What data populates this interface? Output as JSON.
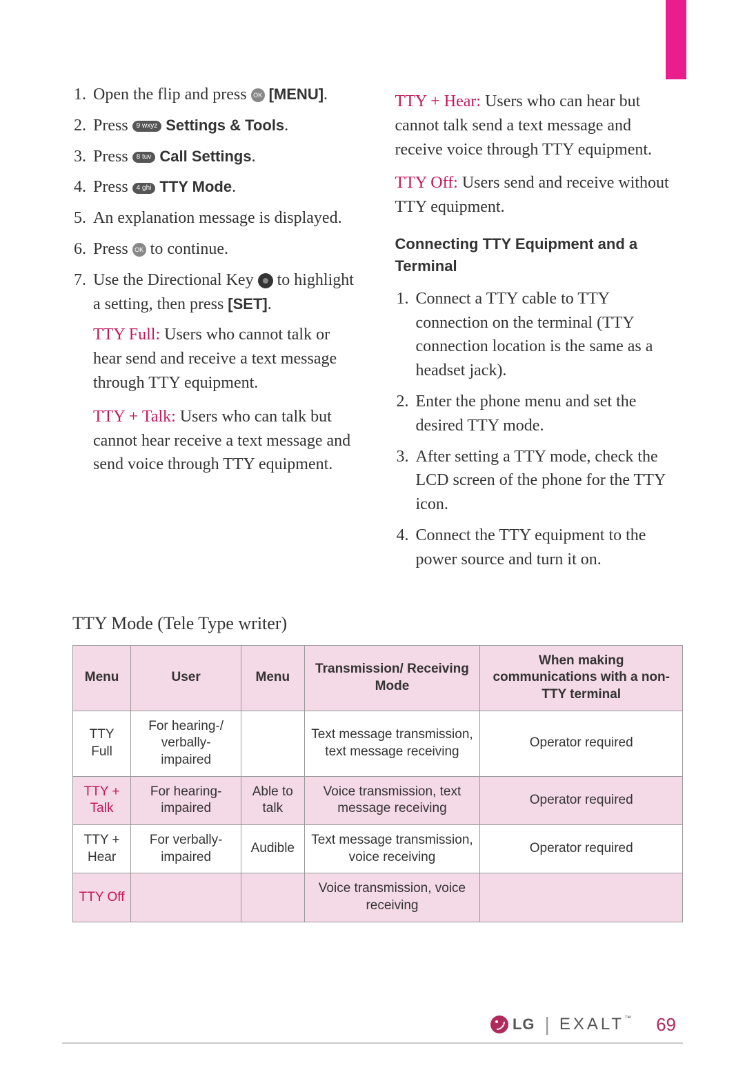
{
  "colors": {
    "accent_pink": "#e91e8c",
    "text_red": "#c2185b",
    "table_hl_bg": "#f4d9e6",
    "border": "#999999",
    "body_text": "#333333"
  },
  "left_steps": [
    {
      "num": "1.",
      "pre": "Open the flip and press ",
      "icon": "ok",
      "post": " ",
      "bold": "[MENU]",
      "tail": "."
    },
    {
      "num": "2.",
      "pre": "Press ",
      "icon": "key9",
      "post": " ",
      "bold": "Settings & Tools",
      "tail": "."
    },
    {
      "num": "3.",
      "pre": "Press ",
      "icon": "key8",
      "post": " ",
      "bold": "Call Settings",
      "tail": "."
    },
    {
      "num": "4.",
      "pre": "Press ",
      "icon": "key4",
      "post": " ",
      "bold": "TTY Mode",
      "tail": "."
    },
    {
      "num": "5.",
      "pre": "An explanation message is displayed.",
      "icon": "",
      "post": "",
      "bold": "",
      "tail": ""
    },
    {
      "num": "6.",
      "pre": "Press ",
      "icon": "ok",
      "post": " to continue.",
      "bold": "",
      "tail": ""
    },
    {
      "num": "7.",
      "pre": "Use the Directional Key ",
      "icon": "dir",
      "post": " to highlight a setting, then press ",
      "bold": "[SET]",
      "tail": "."
    }
  ],
  "left_modes": [
    {
      "label": "TTY Full:",
      "text": " Users who cannot talk or hear send and receive a text message through TTY equipment."
    },
    {
      "label": "TTY + Talk:",
      "text": " Users who can talk but cannot hear receive a text message and send voice through TTY equipment."
    }
  ],
  "right_modes": [
    {
      "label": "TTY + Hear:",
      "text": " Users who can hear but cannot talk send a text message and receive voice through TTY equipment."
    },
    {
      "label": "TTY Off:",
      "text": " Users send and receive without TTY equipment."
    }
  ],
  "sub_heading": "Connecting TTY Equipment and a Terminal",
  "right_steps": [
    {
      "num": "1.",
      "text": "Connect a TTY cable to TTY connection on the terminal (TTY connection location is the same as a headset jack)."
    },
    {
      "num": "2.",
      "text": "Enter the phone menu and set the desired TTY mode."
    },
    {
      "num": "3.",
      "text": "After setting a TTY mode, check the LCD screen of the phone for the TTY icon."
    },
    {
      "num": "4.",
      "text": "Connect the TTY equipment to the power source and turn it on."
    }
  ],
  "table_title": "TTY Mode (Tele Type writer)",
  "table": {
    "headers": [
      "Menu",
      "User",
      "Menu",
      "Transmission/ Receiving Mode",
      "When making communications with a non-TTY terminal"
    ],
    "rows": [
      {
        "cells": [
          "TTY Full",
          "For hearing-/ verbally- impaired",
          "",
          "Text message transmission, text message receiving",
          "Operator required"
        ],
        "hl_cols": [],
        "red_cols": []
      },
      {
        "cells": [
          "TTY + Talk",
          "For hearing- impaired",
          "Able to talk",
          "Voice transmission, text message receiving",
          "Operator required"
        ],
        "hl_cols": [
          0,
          1,
          2,
          3,
          4
        ],
        "red_cols": [
          0
        ]
      },
      {
        "cells": [
          "TTY + Hear",
          "For verbally- impaired",
          "Audible",
          "Text message transmission, voice receiving",
          "Operator required"
        ],
        "hl_cols": [],
        "red_cols": []
      },
      {
        "cells": [
          "TTY Off",
          "",
          "",
          "Voice transmission, voice receiving",
          ""
        ],
        "hl_cols": [
          0,
          1,
          2,
          3,
          4
        ],
        "red_cols": [
          0
        ]
      }
    ],
    "header_hl": true
  },
  "footer": {
    "brand": "LG",
    "model": "EXALT",
    "tm": "™",
    "page": "69"
  },
  "icons": {
    "key9": "9 wxyz",
    "key8": "8 tuv",
    "key4": "4 ghi"
  }
}
